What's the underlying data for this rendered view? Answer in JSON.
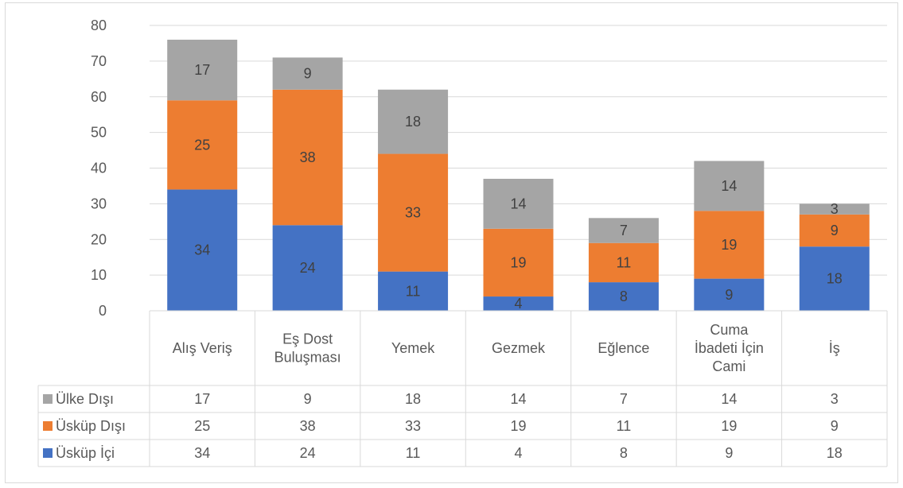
{
  "chart_data": {
    "type": "bar",
    "stacked": true,
    "categories": [
      [
        "Alış Veriş"
      ],
      [
        "Eş Dost",
        "Buluşması"
      ],
      [
        "Yemek"
      ],
      [
        "Gezmek"
      ],
      [
        "Eğlence"
      ],
      [
        "Cuma",
        "İbadeti İçin",
        "Cami"
      ],
      [
        "İş"
      ]
    ],
    "series": [
      {
        "name": "Üsküp İçi",
        "color": "#4472c4",
        "values": [
          34,
          24,
          11,
          4,
          8,
          9,
          18
        ]
      },
      {
        "name": "Üsküp Dışı",
        "color": "#ed7d31",
        "values": [
          25,
          38,
          33,
          19,
          11,
          19,
          9
        ]
      },
      {
        "name": "Ülke Dışı",
        "color": "#a5a5a5",
        "values": [
          17,
          9,
          18,
          14,
          7,
          14,
          3
        ]
      }
    ],
    "ylim": [
      0,
      80
    ],
    "yticks": [
      0,
      10,
      20,
      30,
      40,
      50,
      60,
      70,
      80
    ],
    "grid": true,
    "legend": "data-table",
    "data_table": true
  }
}
